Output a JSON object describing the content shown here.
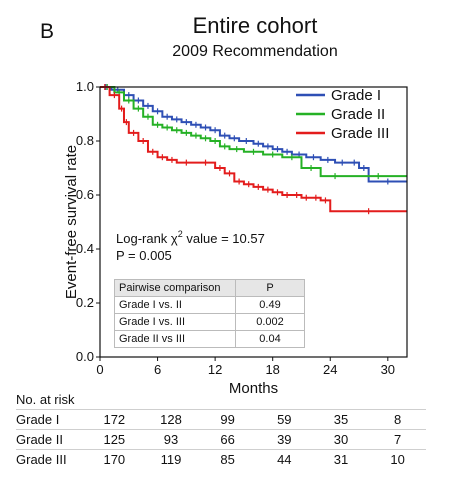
{
  "panel_letter": "B",
  "title": "Entire cohort",
  "subtitle": "2009 Recommendation",
  "colors": {
    "grade_I": "#2e4fb5",
    "grade_II": "#25b125",
    "grade_III": "#e31c1c"
  },
  "chart_data": {
    "type": "line",
    "step": true,
    "xlabel": "Months",
    "ylabel": "Event-free survival rate",
    "xlim": [
      0,
      32
    ],
    "ylim": [
      0.0,
      1.0
    ],
    "xticks": [
      "0",
      "6",
      "12",
      "18",
      "24",
      "30"
    ],
    "yticks": [
      "0.0",
      "0.2",
      "0.4",
      "0.6",
      "0.8",
      "1.0"
    ],
    "legend_position": "top-right",
    "series": [
      {
        "name": "Grade I",
        "x": [
          0,
          1.2,
          2.5,
          3.5,
          4.5,
          5.5,
          6.5,
          7.5,
          8.5,
          9.5,
          10.5,
          11.5,
          12.5,
          13.5,
          14.5,
          16,
          17,
          18,
          19,
          20,
          21.5,
          23,
          24.5,
          26,
          27,
          28,
          32
        ],
        "y": [
          1.0,
          0.99,
          0.97,
          0.95,
          0.93,
          0.91,
          0.89,
          0.88,
          0.87,
          0.86,
          0.85,
          0.84,
          0.82,
          0.81,
          0.8,
          0.79,
          0.78,
          0.77,
          0.76,
          0.75,
          0.74,
          0.73,
          0.72,
          0.72,
          0.7,
          0.65,
          0.65
        ]
      },
      {
        "name": "Grade II",
        "x": [
          0,
          1.5,
          2.5,
          3.5,
          4.5,
          5.5,
          6.5,
          7.5,
          8.5,
          9.5,
          10.5,
          11.5,
          12.5,
          13.5,
          15,
          17,
          19,
          21,
          23,
          26,
          32
        ],
        "y": [
          1.0,
          0.98,
          0.95,
          0.92,
          0.89,
          0.86,
          0.85,
          0.84,
          0.83,
          0.82,
          0.81,
          0.8,
          0.78,
          0.77,
          0.76,
          0.75,
          0.74,
          0.7,
          0.67,
          0.67,
          0.67
        ]
      },
      {
        "name": "Grade III",
        "x": [
          0,
          1,
          2,
          2.5,
          3,
          4,
          5,
          6,
          7,
          8,
          10,
          12,
          13,
          14,
          15,
          16,
          17,
          18,
          19,
          20,
          21,
          22,
          23,
          24,
          32
        ],
        "y": [
          1.0,
          0.97,
          0.92,
          0.87,
          0.83,
          0.8,
          0.76,
          0.74,
          0.73,
          0.72,
          0.72,
          0.7,
          0.68,
          0.65,
          0.64,
          0.63,
          0.62,
          0.61,
          0.6,
          0.6,
          0.59,
          0.59,
          0.58,
          0.54,
          0.54
        ]
      }
    ]
  },
  "annotation": {
    "logrank_prefix": "Log-rank χ",
    "logrank_sup": "2",
    "logrank_suffix": " value = 10.57",
    "p_value": "P = 0.005"
  },
  "pairwise_table": {
    "headers": [
      "Pairwise comparison",
      "P"
    ],
    "rows": [
      [
        "Grade I vs. II",
        "0.49"
      ],
      [
        "Grade I vs. III",
        "0.002"
      ],
      [
        "Grade II vs III",
        "0.04"
      ]
    ]
  },
  "risk_table": {
    "title": "No. at risk",
    "rows": [
      {
        "label": "Grade I",
        "values": [
          "172",
          "128",
          "99",
          "59",
          "35",
          "8"
        ]
      },
      {
        "label": "Grade II",
        "values": [
          "125",
          "93",
          "66",
          "39",
          "30",
          "7"
        ]
      },
      {
        "label": "Grade III",
        "values": [
          "170",
          "119",
          "85",
          "44",
          "31",
          "10"
        ]
      }
    ]
  }
}
